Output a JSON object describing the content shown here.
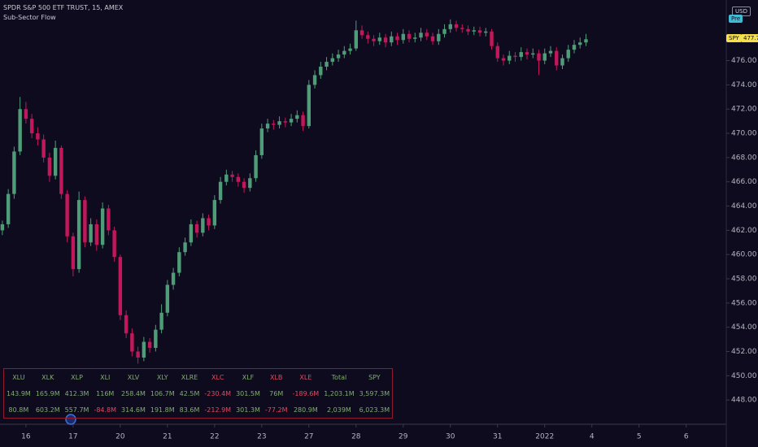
{
  "chart_data": {
    "type": "candlestick",
    "title": "SPDR S&P 500 ETF TRUST, 15, AMEX",
    "subtitle": "Sub-Sector Flow",
    "symbol": "SPY",
    "currency": "USD",
    "session": "Pre",
    "colors": {
      "up": "#4f9d78",
      "down": "#c2185b",
      "background": "#0e0b1e",
      "axis_text": "#b2b5be",
      "badge": "#f5e04a",
      "session_badge": "#3fbcd4"
    },
    "ylim": [
      446,
      481
    ],
    "yticks": [
      {
        "value": 448,
        "label": "448.00"
      },
      {
        "value": 450,
        "label": "450.00"
      },
      {
        "value": 452,
        "label": "452.00"
      },
      {
        "value": 454,
        "label": "454.00"
      },
      {
        "value": 456,
        "label": "456.00"
      },
      {
        "value": 458,
        "label": "458.00"
      },
      {
        "value": 460,
        "label": "460.00"
      },
      {
        "value": 462,
        "label": "462.00"
      },
      {
        "value": 464,
        "label": "464.00"
      },
      {
        "value": 466,
        "label": "466.00"
      },
      {
        "value": 468,
        "label": "468.00"
      },
      {
        "value": 470,
        "label": "470.00"
      },
      {
        "value": 472,
        "label": "472.00"
      },
      {
        "value": 474,
        "label": "474.00"
      },
      {
        "value": 476,
        "label": "476.00"
      }
    ],
    "xlim": [
      -0.4,
      122.8
    ],
    "xticks": [
      {
        "value": 4,
        "label": "16"
      },
      {
        "value": 12,
        "label": "17"
      },
      {
        "value": 20,
        "label": "20"
      },
      {
        "value": 28,
        "label": "21"
      },
      {
        "value": 36,
        "label": "22"
      },
      {
        "value": 44,
        "label": "23"
      },
      {
        "value": 52,
        "label": "27"
      },
      {
        "value": 60,
        "label": "28"
      },
      {
        "value": 68,
        "label": "29"
      },
      {
        "value": 76,
        "label": "30"
      },
      {
        "value": 84,
        "label": "31"
      },
      {
        "value": 92,
        "label": "2022"
      },
      {
        "value": 100,
        "label": "4"
      },
      {
        "value": 108,
        "label": "5"
      },
      {
        "value": 116,
        "label": "6"
      }
    ],
    "ohlc": [
      [
        462.0,
        462.8,
        461.6,
        462.5
      ],
      [
        462.5,
        465.4,
        462.2,
        465.0
      ],
      [
        465.0,
        468.9,
        464.6,
        468.5
      ],
      [
        468.5,
        473.0,
        468.2,
        472.0
      ],
      [
        472.0,
        472.6,
        470.8,
        471.2
      ],
      [
        471.2,
        471.6,
        469.6,
        470.0
      ],
      [
        470.0,
        470.5,
        469.0,
        469.5
      ],
      [
        469.5,
        469.9,
        467.6,
        468.0
      ],
      [
        468.0,
        468.4,
        466.0,
        466.5
      ],
      [
        466.5,
        469.4,
        466.2,
        468.8
      ],
      [
        468.8,
        469.0,
        464.6,
        465.0
      ],
      [
        465.0,
        465.3,
        461.0,
        461.5
      ],
      [
        461.5,
        461.8,
        458.2,
        458.8
      ],
      [
        458.8,
        465.2,
        458.5,
        464.5
      ],
      [
        464.5,
        464.8,
        460.6,
        461.0
      ],
      [
        461.0,
        463.0,
        460.7,
        462.5
      ],
      [
        462.5,
        462.9,
        460.3,
        460.8
      ],
      [
        460.8,
        464.3,
        460.5,
        463.8
      ],
      [
        463.8,
        464.1,
        461.6,
        462.0
      ],
      [
        462.0,
        462.3,
        459.4,
        459.8
      ],
      [
        459.8,
        460.0,
        454.6,
        455.0
      ],
      [
        455.0,
        455.4,
        453.1,
        453.5
      ],
      [
        453.5,
        453.9,
        451.6,
        452.0
      ],
      [
        452.0,
        452.4,
        451.0,
        451.5
      ],
      [
        451.5,
        453.2,
        451.2,
        452.8
      ],
      [
        452.8,
        453.1,
        451.9,
        452.3
      ],
      [
        452.3,
        454.2,
        452.0,
        453.8
      ],
      [
        453.8,
        455.9,
        453.5,
        455.2
      ],
      [
        455.2,
        457.9,
        454.9,
        457.5
      ],
      [
        457.5,
        458.9,
        457.1,
        458.5
      ],
      [
        458.5,
        460.6,
        458.2,
        460.2
      ],
      [
        460.2,
        461.4,
        459.9,
        461.0
      ],
      [
        461.0,
        462.9,
        460.7,
        462.5
      ],
      [
        462.5,
        462.8,
        461.4,
        461.8
      ],
      [
        461.8,
        463.4,
        461.5,
        463.0
      ],
      [
        463.0,
        463.3,
        462.0,
        462.4
      ],
      [
        462.4,
        464.9,
        462.1,
        464.5
      ],
      [
        464.5,
        466.4,
        464.2,
        466.0
      ],
      [
        466.0,
        467.0,
        465.7,
        466.6
      ],
      [
        466.6,
        466.9,
        466.0,
        466.4
      ],
      [
        466.4,
        466.7,
        465.6,
        466.0
      ],
      [
        466.0,
        466.3,
        465.1,
        465.5
      ],
      [
        465.5,
        466.7,
        465.2,
        466.3
      ],
      [
        466.3,
        468.6,
        466.0,
        468.2
      ],
      [
        468.2,
        470.8,
        467.9,
        470.4
      ],
      [
        470.4,
        471.2,
        470.1,
        470.8
      ],
      [
        470.8,
        471.1,
        470.3,
        470.7
      ],
      [
        470.7,
        471.4,
        470.4,
        471.0
      ],
      [
        471.0,
        471.3,
        470.5,
        470.9
      ],
      [
        470.9,
        471.6,
        470.6,
        471.2
      ],
      [
        471.2,
        471.9,
        470.9,
        471.5
      ],
      [
        471.5,
        471.8,
        470.2,
        470.6
      ],
      [
        470.6,
        474.4,
        470.4,
        474.0
      ],
      [
        474.0,
        475.2,
        473.7,
        474.8
      ],
      [
        474.8,
        475.9,
        474.5,
        475.5
      ],
      [
        475.5,
        476.3,
        475.2,
        475.9
      ],
      [
        475.9,
        476.6,
        475.6,
        476.2
      ],
      [
        476.2,
        476.9,
        475.9,
        476.5
      ],
      [
        476.5,
        477.2,
        476.2,
        476.8
      ],
      [
        476.8,
        477.4,
        476.5,
        477.0
      ],
      [
        477.0,
        479.3,
        476.8,
        478.5
      ],
      [
        478.5,
        478.9,
        477.8,
        478.1
      ],
      [
        478.1,
        478.4,
        477.4,
        477.8
      ],
      [
        477.8,
        478.1,
        477.2,
        477.6
      ],
      [
        477.6,
        478.3,
        477.3,
        477.9
      ],
      [
        477.9,
        478.2,
        477.1,
        477.5
      ],
      [
        477.5,
        478.4,
        477.2,
        478.0
      ],
      [
        478.0,
        478.3,
        477.3,
        477.7
      ],
      [
        477.7,
        478.6,
        477.4,
        478.2
      ],
      [
        478.2,
        478.5,
        477.5,
        477.8
      ],
      [
        477.8,
        478.3,
        477.5,
        477.9
      ],
      [
        477.9,
        478.7,
        477.6,
        478.3
      ],
      [
        478.3,
        478.6,
        477.7,
        478.0
      ],
      [
        478.0,
        478.3,
        477.3,
        477.6
      ],
      [
        477.6,
        478.6,
        477.3,
        478.2
      ],
      [
        478.2,
        479.0,
        477.9,
        478.6
      ],
      [
        478.6,
        479.4,
        478.3,
        479.0
      ],
      [
        479.0,
        479.3,
        478.4,
        478.7
      ],
      [
        478.7,
        479.0,
        478.3,
        478.6
      ],
      [
        478.6,
        478.9,
        478.1,
        478.4
      ],
      [
        478.4,
        478.8,
        478.1,
        478.5
      ],
      [
        478.5,
        478.8,
        478.0,
        478.3
      ],
      [
        478.3,
        478.7,
        478.0,
        478.4
      ],
      [
        478.4,
        478.6,
        476.9,
        477.2
      ],
      [
        477.2,
        477.5,
        475.9,
        476.2
      ],
      [
        476.2,
        476.5,
        475.6,
        476.0
      ],
      [
        476.0,
        476.8,
        475.7,
        476.4
      ],
      [
        476.4,
        476.7,
        475.9,
        476.3
      ],
      [
        476.3,
        477.1,
        476.0,
        476.7
      ],
      [
        476.7,
        477.0,
        476.1,
        476.5
      ],
      [
        476.5,
        477.0,
        476.2,
        476.6
      ],
      [
        476.6,
        476.9,
        474.8,
        476.0
      ],
      [
        476.0,
        477.0,
        475.7,
        476.6
      ],
      [
        476.6,
        477.2,
        476.3,
        476.8
      ],
      [
        476.8,
        477.1,
        475.2,
        475.6
      ],
      [
        475.6,
        476.5,
        475.3,
        476.2
      ],
      [
        476.2,
        477.3,
        475.9,
        476.9
      ],
      [
        476.9,
        477.7,
        476.6,
        477.3
      ],
      [
        477.3,
        477.9,
        477.0,
        477.5
      ],
      [
        477.5,
        478.2,
        477.2,
        477.76
      ]
    ]
  },
  "table": {
    "headers": [
      "XLU",
      "XLK",
      "XLP",
      "XLI",
      "XLV",
      "XLY",
      "XLRE",
      "XLC",
      "XLF",
      "XLB",
      "XLE",
      "Total",
      "SPY"
    ],
    "header_colors": [
      "#7fae6e",
      "#7fae6e",
      "#7fae6e",
      "#7fae6e",
      "#7fae6e",
      "#7fae6e",
      "#7fae6e",
      "#e5485e",
      "#7fae6e",
      "#e5485e",
      "#e5485e",
      "#7fae6e",
      "#7fae6e"
    ],
    "colors": {
      "positive": "#7fae6e",
      "negative": "#e5485e"
    },
    "rows": [
      [
        "143.9M",
        "165.9M",
        "412.3M",
        "116M",
        "258.4M",
        "106.7M",
        "42.5M",
        "-230.4M",
        "301.5M",
        "76M",
        "-189.6M",
        "1,203.1M",
        "3,597.3M"
      ],
      [
        "80.8M",
        "603.2M",
        "557.7M",
        "-84.8M",
        "314.6M",
        "191.8M",
        "83.6M",
        "-212.9M",
        "301.3M",
        "-77.2M",
        "280.9M",
        "2,039M",
        "6,023.3M"
      ]
    ]
  }
}
